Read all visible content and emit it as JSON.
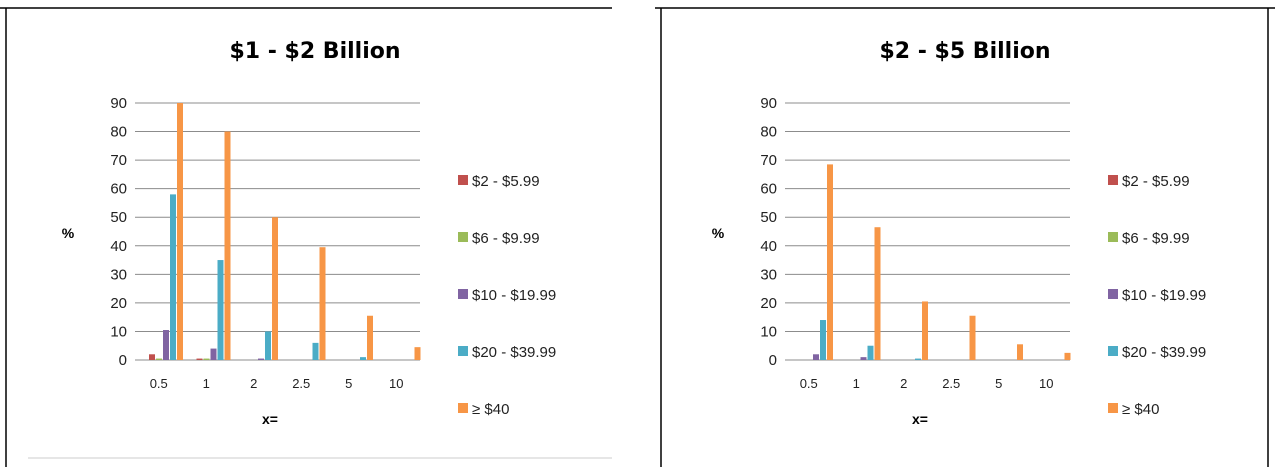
{
  "chart_data": [
    {
      "type": "bar",
      "title": "$1 - $2 Billion",
      "xlabel": "x=",
      "ylabel": "%",
      "ylim": [
        0,
        90
      ],
      "yticks": [
        0,
        10,
        20,
        30,
        40,
        50,
        60,
        70,
        80,
        90
      ],
      "categories": [
        "0.5",
        "1",
        "2",
        "2.5",
        "5",
        "10"
      ],
      "legend_position": "right",
      "series": [
        {
          "name": "$2 - $5.99",
          "color": "#c0504d",
          "values": [
            2,
            0.5,
            0,
            0,
            0,
            0
          ]
        },
        {
          "name": "$6 - $9.99",
          "color": "#9bbb59",
          "values": [
            0.5,
            0.5,
            0,
            0,
            0,
            0
          ]
        },
        {
          "name": "$10 - $19.99",
          "color": "#8064a2",
          "values": [
            10.5,
            4,
            0.5,
            0,
            0,
            0
          ]
        },
        {
          "name": "$20 - $39.99",
          "color": "#4bacc6",
          "values": [
            58,
            35,
            10,
            6,
            1,
            0
          ]
        },
        {
          "name": "≥ $40",
          "color": "#f79646",
          "values": [
            90,
            80,
            50,
            39.5,
            15.5,
            4.5
          ]
        }
      ]
    },
    {
      "type": "bar",
      "title": "$2 - $5 Billion",
      "xlabel": "x=",
      "ylabel": "%",
      "ylim": [
        0,
        90
      ],
      "yticks": [
        0,
        10,
        20,
        30,
        40,
        50,
        60,
        70,
        80,
        90
      ],
      "categories": [
        "0.5",
        "1",
        "2",
        "2.5",
        "5",
        "10"
      ],
      "legend_position": "right",
      "series": [
        {
          "name": "$2 - $5.99",
          "color": "#c0504d",
          "values": [
            0,
            0,
            0,
            0,
            0,
            0
          ]
        },
        {
          "name": "$6 - $9.99",
          "color": "#9bbb59",
          "values": [
            0,
            0,
            0,
            0,
            0,
            0
          ]
        },
        {
          "name": "$10 - $19.99",
          "color": "#8064a2",
          "values": [
            2,
            1,
            0,
            0,
            0,
            0
          ]
        },
        {
          "name": "$20 - $39.99",
          "color": "#4bacc6",
          "values": [
            14,
            5,
            0.5,
            0,
            0,
            0
          ]
        },
        {
          "name": "≥ $40",
          "color": "#f79646",
          "values": [
            68.5,
            46.5,
            20.5,
            15.5,
            5.5,
            2.5
          ]
        }
      ]
    }
  ]
}
